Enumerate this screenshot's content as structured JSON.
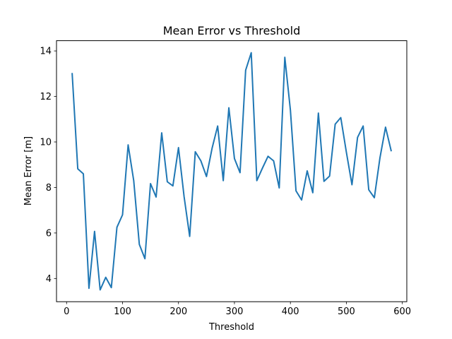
{
  "chart_data": {
    "type": "line",
    "title": "Mean Error vs Threshold",
    "xlabel": "Threshold",
    "ylabel": "Mean Error [m]",
    "xlim": [
      -18,
      608
    ],
    "ylim": [
      2.98,
      14.45
    ],
    "xticks": [
      0,
      100,
      200,
      300,
      400,
      500,
      600
    ],
    "yticks": [
      4,
      6,
      8,
      10,
      12,
      14
    ],
    "grid": false,
    "legend": "none",
    "color": "#1f77b4",
    "series": [
      {
        "x": [
          10,
          20,
          30,
          40,
          50,
          60,
          70,
          80,
          90,
          100,
          110,
          120,
          130,
          140,
          150,
          160,
          170,
          180,
          190,
          200,
          210,
          220,
          230,
          240,
          250,
          260,
          270,
          280,
          290,
          300,
          310,
          320,
          330,
          340,
          350,
          360,
          370,
          380,
          390,
          400,
          410,
          420,
          430,
          440,
          450,
          460,
          470,
          480,
          490,
          500,
          510,
          520,
          530,
          540,
          550,
          560,
          570,
          580
        ],
        "values": [
          13.0,
          8.82,
          8.6,
          3.57,
          6.07,
          3.5,
          4.05,
          3.6,
          6.25,
          6.8,
          9.87,
          8.3,
          5.5,
          4.87,
          8.17,
          7.58,
          10.4,
          8.25,
          8.07,
          9.75,
          7.6,
          5.85,
          9.57,
          9.17,
          8.48,
          9.72,
          10.7,
          8.3,
          11.5,
          9.27,
          8.65,
          13.15,
          13.92,
          8.3,
          8.85,
          9.37,
          9.17,
          7.98,
          13.72,
          11.4,
          7.85,
          7.45,
          8.73,
          7.77,
          11.27,
          8.27,
          8.5,
          10.78,
          11.07,
          9.55,
          8.12,
          10.2,
          10.7,
          7.9,
          7.55,
          9.3,
          10.65,
          9.62
        ]
      }
    ]
  }
}
